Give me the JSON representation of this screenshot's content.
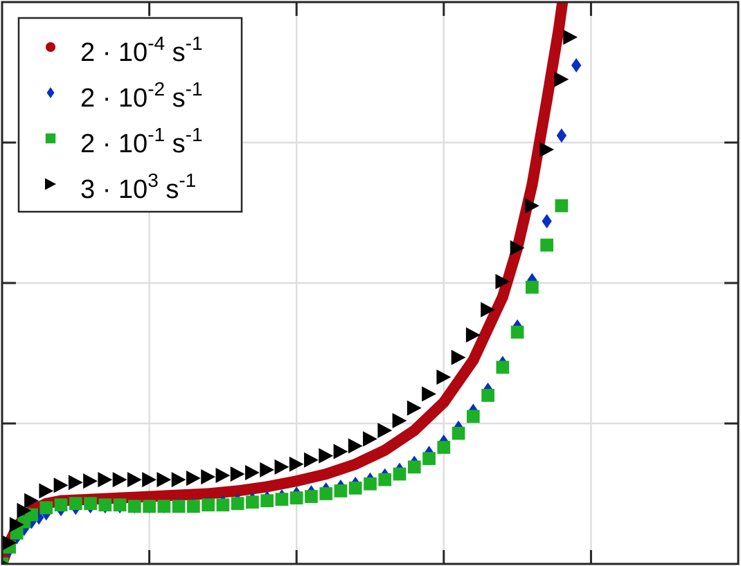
{
  "chart_data": {
    "type": "scatter",
    "title": "",
    "xlabel": "",
    "ylabel": "",
    "xlim": [
      0,
      5
    ],
    "ylim": [
      0,
      4
    ],
    "x_ticks": [
      1,
      2,
      3,
      4
    ],
    "y_ticks": [
      1,
      2,
      3
    ],
    "grid": true,
    "legend_position": "top-left",
    "series": [
      {
        "name_parts": {
          "mantissa": "2",
          "dot": "·",
          "base": "10",
          "exponent": "-4",
          "unit": "s",
          "unit_exponent": "-1"
        },
        "marker": "circle",
        "color": "#b00710",
        "style": "thick-line",
        "points": [
          [
            0.0,
            0.0
          ],
          [
            0.05,
            0.15
          ],
          [
            0.1,
            0.26
          ],
          [
            0.15,
            0.33
          ],
          [
            0.2,
            0.38
          ],
          [
            0.3,
            0.43
          ],
          [
            0.4,
            0.45
          ],
          [
            0.6,
            0.46
          ],
          [
            0.8,
            0.47
          ],
          [
            1.0,
            0.48
          ],
          [
            1.2,
            0.49
          ],
          [
            1.4,
            0.5
          ],
          [
            1.6,
            0.52
          ],
          [
            1.8,
            0.55
          ],
          [
            2.0,
            0.59
          ],
          [
            2.2,
            0.64
          ],
          [
            2.4,
            0.71
          ],
          [
            2.6,
            0.81
          ],
          [
            2.8,
            0.95
          ],
          [
            3.0,
            1.15
          ],
          [
            3.2,
            1.45
          ],
          [
            3.4,
            1.9
          ],
          [
            3.5,
            2.25
          ],
          [
            3.6,
            2.7
          ],
          [
            3.7,
            3.3
          ],
          [
            3.78,
            3.8
          ],
          [
            3.82,
            4.1
          ]
        ]
      },
      {
        "name_parts": {
          "mantissa": "2",
          "dot": "·",
          "base": "10",
          "exponent": "-2",
          "unit": "s",
          "unit_exponent": "-1"
        },
        "marker": "diamond",
        "color": "#0b2fc4",
        "points": [
          [
            0.0,
            0.0
          ],
          [
            0.05,
            0.1
          ],
          [
            0.1,
            0.19
          ],
          [
            0.15,
            0.25
          ],
          [
            0.2,
            0.3
          ],
          [
            0.25,
            0.33
          ],
          [
            0.3,
            0.36
          ],
          [
            0.4,
            0.39
          ],
          [
            0.5,
            0.4
          ],
          [
            0.6,
            0.41
          ],
          [
            0.7,
            0.41
          ],
          [
            0.8,
            0.41
          ],
          [
            0.9,
            0.41
          ],
          [
            1.0,
            0.41
          ],
          [
            1.1,
            0.41
          ],
          [
            1.2,
            0.42
          ],
          [
            1.3,
            0.42
          ],
          [
            1.4,
            0.43
          ],
          [
            1.5,
            0.44
          ],
          [
            1.6,
            0.45
          ],
          [
            1.7,
            0.46
          ],
          [
            1.8,
            0.47
          ],
          [
            1.9,
            0.48
          ],
          [
            2.0,
            0.5
          ],
          [
            2.1,
            0.51
          ],
          [
            2.2,
            0.53
          ],
          [
            2.3,
            0.55
          ],
          [
            2.4,
            0.57
          ],
          [
            2.5,
            0.6
          ],
          [
            2.6,
            0.63
          ],
          [
            2.7,
            0.67
          ],
          [
            2.8,
            0.72
          ],
          [
            2.9,
            0.79
          ],
          [
            3.0,
            0.87
          ],
          [
            3.1,
            0.97
          ],
          [
            3.2,
            1.09
          ],
          [
            3.3,
            1.24
          ],
          [
            3.4,
            1.43
          ],
          [
            3.5,
            1.69
          ],
          [
            3.6,
            2.02
          ],
          [
            3.7,
            2.44
          ],
          [
            3.8,
            3.05
          ],
          [
            3.9,
            3.55
          ]
        ]
      },
      {
        "name_parts": {
          "mantissa": "2",
          "dot": "·",
          "base": "10",
          "exponent": "-1",
          "unit": "s",
          "unit_exponent": "-1"
        },
        "marker": "square",
        "color": "#1db026",
        "points": [
          [
            0.0,
            0.0
          ],
          [
            0.05,
            0.12
          ],
          [
            0.1,
            0.22
          ],
          [
            0.15,
            0.3
          ],
          [
            0.2,
            0.35
          ],
          [
            0.3,
            0.4
          ],
          [
            0.4,
            0.42
          ],
          [
            0.5,
            0.43
          ],
          [
            0.6,
            0.43
          ],
          [
            0.7,
            0.42
          ],
          [
            0.8,
            0.42
          ],
          [
            0.9,
            0.41
          ],
          [
            1.0,
            0.41
          ],
          [
            1.1,
            0.41
          ],
          [
            1.2,
            0.41
          ],
          [
            1.3,
            0.41
          ],
          [
            1.4,
            0.42
          ],
          [
            1.5,
            0.42
          ],
          [
            1.6,
            0.43
          ],
          [
            1.7,
            0.44
          ],
          [
            1.8,
            0.45
          ],
          [
            1.9,
            0.46
          ],
          [
            2.0,
            0.47
          ],
          [
            2.1,
            0.48
          ],
          [
            2.2,
            0.5
          ],
          [
            2.3,
            0.52
          ],
          [
            2.4,
            0.54
          ],
          [
            2.5,
            0.57
          ],
          [
            2.6,
            0.6
          ],
          [
            2.7,
            0.64
          ],
          [
            2.8,
            0.69
          ],
          [
            2.9,
            0.75
          ],
          [
            3.0,
            0.83
          ],
          [
            3.1,
            0.93
          ],
          [
            3.2,
            1.05
          ],
          [
            3.3,
            1.2
          ],
          [
            3.4,
            1.4
          ],
          [
            3.5,
            1.65
          ],
          [
            3.6,
            1.97
          ],
          [
            3.7,
            2.27
          ],
          [
            3.8,
            2.55
          ]
        ]
      },
      {
        "name_parts": {
          "mantissa": "3",
          "dot": "·",
          "base": "10",
          "exponent": "3",
          "unit": "s",
          "unit_exponent": "-1"
        },
        "marker": "triangle-right",
        "color": "#000000",
        "points": [
          [
            0.0,
            0.0
          ],
          [
            0.05,
            0.15
          ],
          [
            0.1,
            0.28
          ],
          [
            0.15,
            0.38
          ],
          [
            0.2,
            0.45
          ],
          [
            0.3,
            0.52
          ],
          [
            0.4,
            0.56
          ],
          [
            0.5,
            0.58
          ],
          [
            0.6,
            0.59
          ],
          [
            0.7,
            0.6
          ],
          [
            0.8,
            0.6
          ],
          [
            0.9,
            0.6
          ],
          [
            1.0,
            0.6
          ],
          [
            1.1,
            0.6
          ],
          [
            1.2,
            0.6
          ],
          [
            1.3,
            0.61
          ],
          [
            1.4,
            0.62
          ],
          [
            1.5,
            0.63
          ],
          [
            1.6,
            0.64
          ],
          [
            1.7,
            0.65
          ],
          [
            1.8,
            0.67
          ],
          [
            1.9,
            0.69
          ],
          [
            2.0,
            0.71
          ],
          [
            2.1,
            0.74
          ],
          [
            2.2,
            0.77
          ],
          [
            2.3,
            0.8
          ],
          [
            2.4,
            0.84
          ],
          [
            2.5,
            0.89
          ],
          [
            2.6,
            0.95
          ],
          [
            2.7,
            1.02
          ],
          [
            2.8,
            1.11
          ],
          [
            2.9,
            1.21
          ],
          [
            3.0,
            1.33
          ],
          [
            3.1,
            1.47
          ],
          [
            3.2,
            1.63
          ],
          [
            3.3,
            1.81
          ],
          [
            3.4,
            2.01
          ],
          [
            3.5,
            2.25
          ],
          [
            3.6,
            2.55
          ],
          [
            3.7,
            2.95
          ],
          [
            3.8,
            3.45
          ],
          [
            3.86,
            3.75
          ]
        ]
      }
    ]
  }
}
